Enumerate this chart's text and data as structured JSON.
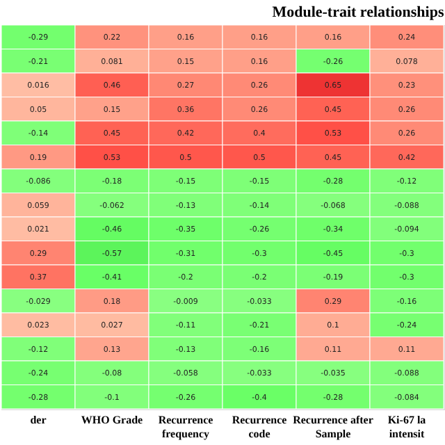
{
  "chart_data": {
    "type": "heatmap",
    "title": "Module-trait relationships",
    "data_labels": true,
    "categories": [
      "der",
      "WHO  Grade",
      "Recurrence\nfrequency",
      "Recurrence\ncode",
      "Recurrence after\nSample",
      "Ki-67 la\nintensit"
    ],
    "y_categories": [
      null,
      null,
      null,
      null,
      null,
      null,
      null,
      null,
      null,
      null,
      null,
      null,
      null,
      null,
      null,
      null
    ],
    "cells": [
      [
        -0.29,
        0.22,
        0.16,
        0.16,
        0.16,
        0.24
      ],
      [
        -0.21,
        0.081,
        0.15,
        0.16,
        -0.26,
        0.078
      ],
      [
        0.016,
        0.46,
        0.27,
        0.26,
        0.65,
        0.23
      ],
      [
        0.05,
        0.15,
        0.36,
        0.26,
        0.45,
        0.26
      ],
      [
        -0.14,
        0.45,
        0.42,
        0.4,
        0.53,
        0.26
      ],
      [
        0.19,
        0.53,
        0.5,
        0.5,
        0.45,
        0.42
      ],
      [
        -0.086,
        -0.18,
        -0.15,
        -0.15,
        -0.28,
        -0.12
      ],
      [
        0.059,
        -0.062,
        -0.13,
        -0.14,
        -0.068,
        -0.088
      ],
      [
        0.021,
        -0.46,
        -0.35,
        -0.26,
        -0.34,
        -0.094
      ],
      [
        0.29,
        -0.57,
        -0.31,
        -0.3,
        -0.45,
        -0.3
      ],
      [
        0.37,
        -0.41,
        -0.2,
        -0.2,
        -0.19,
        -0.3
      ],
      [
        -0.029,
        0.18,
        -0.009,
        -0.033,
        0.29,
        -0.16
      ],
      [
        0.023,
        0.027,
        -0.11,
        -0.21,
        0.1,
        -0.24
      ],
      [
        -0.12,
        0.13,
        -0.13,
        -0.16,
        0.11,
        0.11
      ],
      [
        -0.24,
        -0.08,
        -0.058,
        -0.033,
        -0.035,
        -0.088
      ],
      [
        -0.28,
        -0.1,
        -0.26,
        -0.4,
        -0.28,
        -0.084
      ]
    ]
  }
}
